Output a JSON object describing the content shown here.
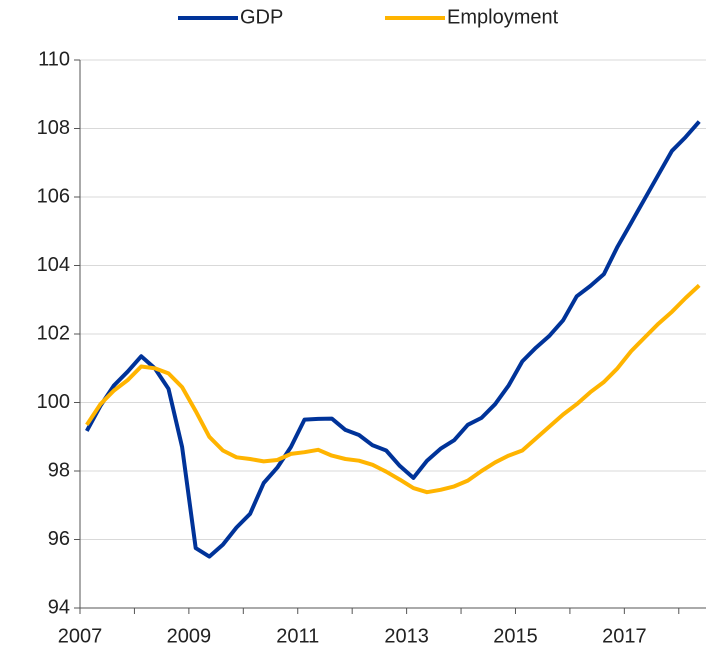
{
  "chart_data": {
    "type": "line",
    "categories": [
      "2007",
      null,
      null,
      null,
      null,
      null,
      null,
      null,
      "2009",
      null,
      null,
      null,
      null,
      null,
      null,
      null,
      "2011",
      null,
      null,
      null,
      null,
      null,
      null,
      null,
      "2013",
      null,
      null,
      null,
      null,
      null,
      null,
      null,
      "2015",
      null,
      null,
      null,
      null,
      null,
      null,
      null,
      "2017",
      null,
      null,
      null,
      null,
      null
    ],
    "series": [
      {
        "name": "GDP",
        "color": "#003399",
        "values": [
          99.17,
          99.9,
          100.5,
          100.9,
          101.35,
          101.0,
          100.4,
          98.7,
          95.75,
          95.5,
          95.85,
          96.35,
          96.75,
          97.65,
          98.1,
          98.7,
          99.5,
          99.52,
          99.53,
          99.2,
          99.05,
          98.75,
          98.6,
          98.15,
          97.8,
          98.3,
          98.65,
          98.9,
          99.35,
          99.55,
          99.95,
          100.5,
          101.2,
          101.6,
          101.95,
          102.4,
          103.1,
          103.4,
          103.75,
          104.55,
          105.25,
          105.95,
          106.65,
          107.35,
          107.75,
          108.2
        ]
      },
      {
        "name": "Employment",
        "color": "#ffb400",
        "values": [
          99.35,
          99.95,
          100.35,
          100.65,
          101.05,
          101.0,
          100.85,
          100.45,
          99.75,
          99.0,
          98.6,
          98.4,
          98.35,
          98.28,
          98.32,
          98.5,
          98.55,
          98.62,
          98.45,
          98.35,
          98.3,
          98.18,
          97.98,
          97.75,
          97.5,
          97.38,
          97.45,
          97.55,
          97.72,
          98.0,
          98.25,
          98.45,
          98.6,
          98.95,
          99.3,
          99.65,
          99.95,
          100.3,
          100.6,
          101.0,
          101.5,
          101.9,
          102.3,
          102.65,
          103.05,
          103.42
        ]
      }
    ],
    "ylim": [
      94,
      110
    ],
    "yticks": [
      94,
      96,
      98,
      100,
      102,
      104,
      106,
      108,
      110
    ],
    "grid": true,
    "legend": "top"
  }
}
